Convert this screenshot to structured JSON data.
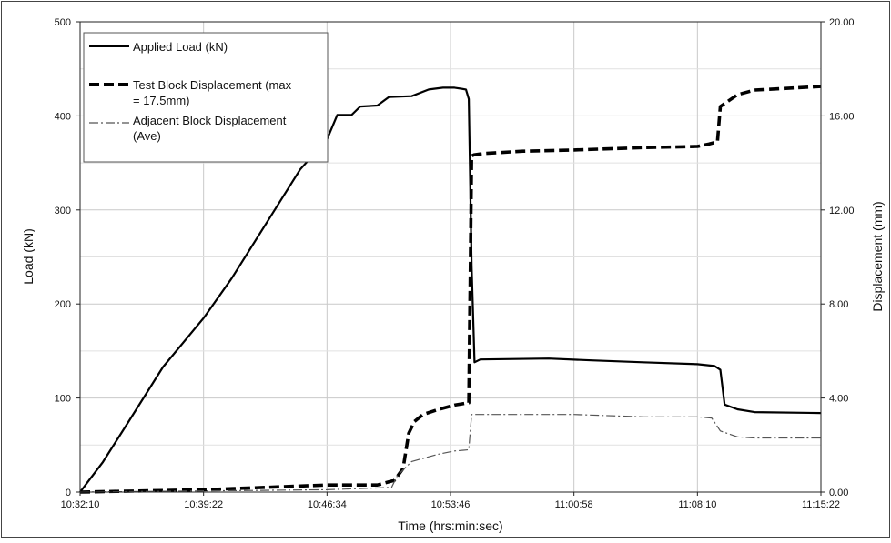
{
  "chart_data": {
    "type": "line",
    "xlabel": "Time (hrs:min:sec)",
    "ylabel": "Load (kN)",
    "y2label": "Displacement (mm)",
    "x_tick_labels": [
      "10:32:10",
      "10:39:22",
      "10:46:34",
      "10:53:46",
      "11:00:58",
      "11:08:10",
      "11:15:22"
    ],
    "xlim": [
      "10:32:10",
      "11:15:22"
    ],
    "ylim": [
      0,
      500
    ],
    "y_ticks": [
      0,
      100,
      200,
      300,
      400,
      500
    ],
    "y2lim": [
      0,
      20
    ],
    "y2_tick_labels": [
      "0.00",
      "4.00",
      "8.00",
      "12.00",
      "16.00",
      "20.00"
    ],
    "grid": true,
    "legend_position": "top-left",
    "series": [
      {
        "name": "Applied Load (kN)",
        "axis": "left",
        "style": "solid",
        "color": "#000000",
        "x": [
          "10:32:10",
          "10:32:30",
          "10:33:30",
          "10:35:00",
          "10:37:00",
          "10:39:22",
          "10:41:00",
          "10:43:00",
          "10:45:00",
          "10:46:34",
          "10:47:10",
          "10:48:00",
          "10:48:30",
          "10:49:30",
          "10:50:10",
          "10:51:30",
          "10:52:30",
          "10:53:20",
          "10:54:00",
          "10:54:40",
          "10:54:50",
          "10:55:00",
          "10:55:10",
          "10:55:30",
          "10:59:30",
          "11:02:00",
          "11:05:00",
          "11:08:10",
          "11:09:10",
          "11:09:30",
          "11:09:45",
          "11:10:30",
          "11:11:30",
          "11:15:22"
        ],
        "y": [
          0,
          8,
          32,
          75,
          133,
          185,
          227,
          285,
          343,
          375,
          401,
          401,
          410,
          411,
          420,
          421,
          428,
          430,
          430,
          428,
          418,
          240,
          138,
          141,
          142,
          140,
          138,
          136,
          134,
          130,
          93,
          88,
          85,
          84
        ]
      },
      {
        "name": "Test Block Displacement  (max = 17.5mm)",
        "axis": "right",
        "style": "dashed",
        "color": "#000000",
        "x": [
          "10:32:10",
          "10:39:22",
          "10:46:34",
          "10:49:30",
          "10:50:30",
          "10:51:00",
          "10:51:20",
          "10:51:40",
          "10:52:10",
          "10:53:00",
          "10:54:00",
          "10:54:50",
          "10:55:00",
          "10:55:10",
          "10:55:40",
          "10:58:00",
          "11:00:58",
          "11:05:00",
          "11:08:10",
          "11:08:50",
          "11:09:20",
          "11:09:30",
          "11:10:30",
          "11:11:30",
          "11:15:22"
        ],
        "y": [
          0,
          0.1,
          0.3,
          0.3,
          0.5,
          1.0,
          2.5,
          3.0,
          3.3,
          3.5,
          3.7,
          3.8,
          14.3,
          14.35,
          14.4,
          14.5,
          14.55,
          14.65,
          14.7,
          14.8,
          14.9,
          16.4,
          16.9,
          17.1,
          17.25
        ]
      },
      {
        "name": "Adjacent Block Displacement (Ave)",
        "axis": "right",
        "style": "dashdot",
        "color": "#555555",
        "x": [
          "10:32:10",
          "10:46:34",
          "10:50:20",
          "10:50:40",
          "10:51:30",
          "10:53:00",
          "10:54:00",
          "10:54:50",
          "10:55:00",
          "10:55:40",
          "11:00:58",
          "11:05:00",
          "11:08:10",
          "11:09:00",
          "11:09:30",
          "11:10:30",
          "11:11:30",
          "11:15:22"
        ],
        "y": [
          0,
          0.1,
          0.2,
          0.7,
          1.3,
          1.6,
          1.75,
          1.8,
          3.3,
          3.3,
          3.3,
          3.2,
          3.2,
          3.15,
          2.6,
          2.35,
          2.3,
          2.3
        ]
      }
    ]
  }
}
